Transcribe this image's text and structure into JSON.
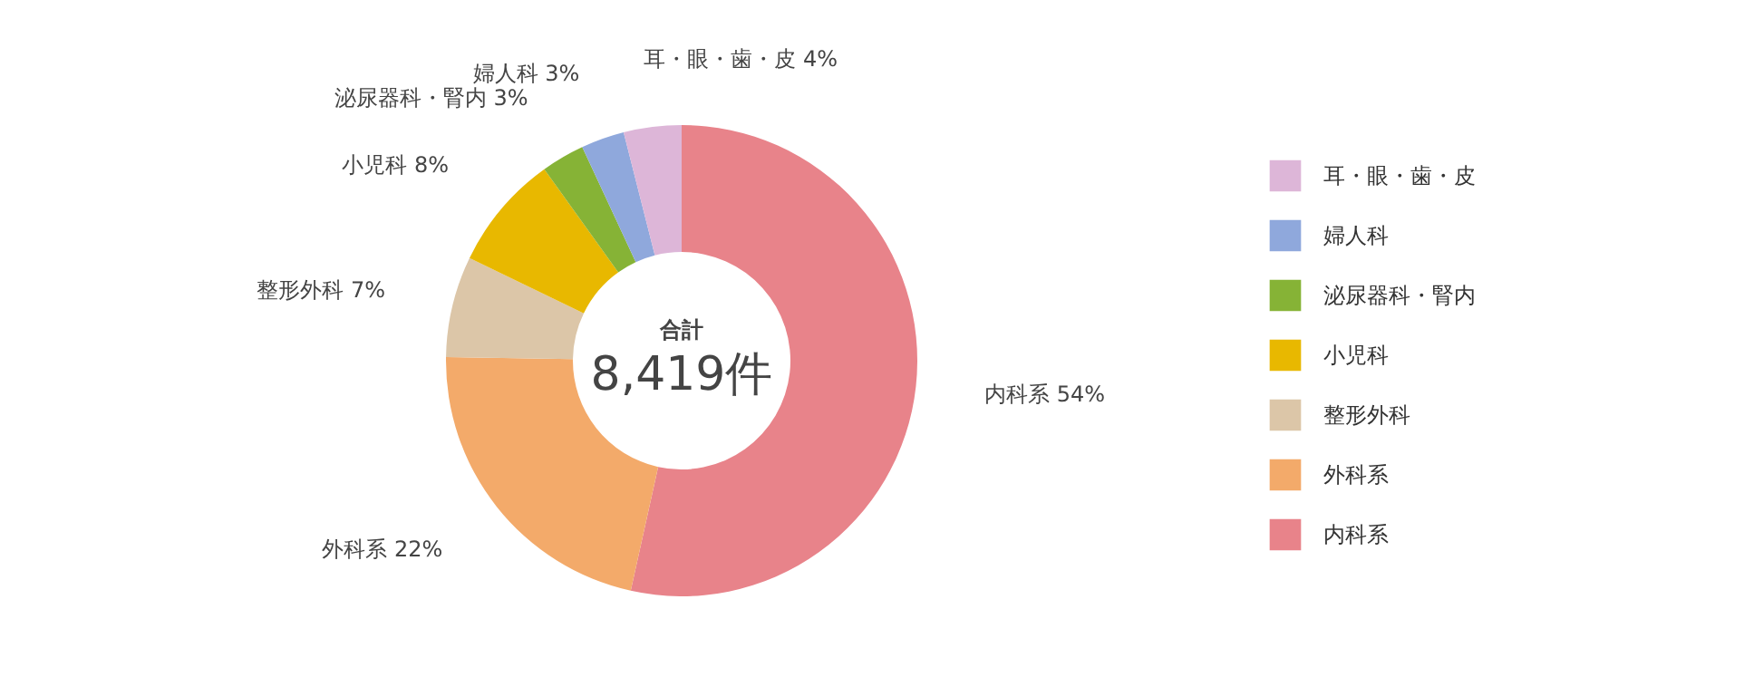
{
  "chart_data": {
    "type": "donut",
    "categories": [
      "内科系",
      "外科系",
      "整形外科",
      "小児科",
      "泌尿器科・腎内",
      "婦人科",
      "耳・眼・歯・皮"
    ],
    "values": [
      54,
      22,
      7,
      8,
      3,
      3,
      4
    ],
    "value_labels": [
      "54%",
      "22%",
      "7%",
      "8%",
      "3%",
      "3%",
      "4%"
    ],
    "colors": [
      "#e8838a",
      "#f3aa6a",
      "#dcc6a8",
      "#e8b800",
      "#86b336",
      "#8fa8dc",
      "#ddb6d8"
    ],
    "annotations": [
      "合計",
      "8,419件"
    ],
    "legend": "right"
  }
}
